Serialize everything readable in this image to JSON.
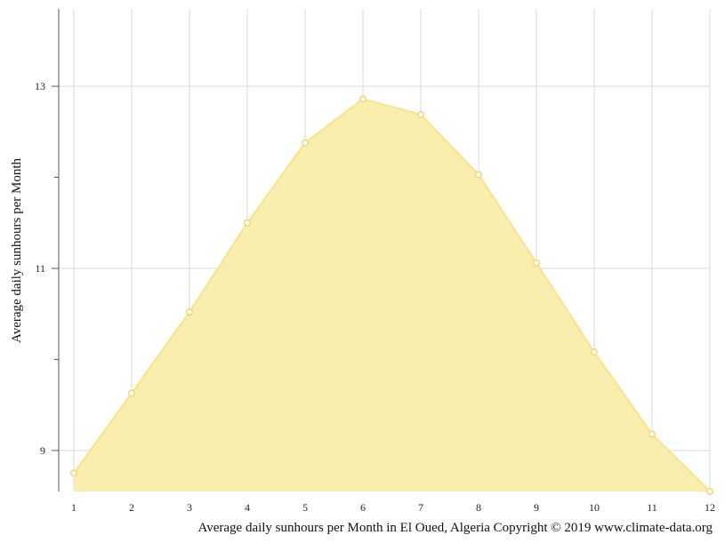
{
  "chart_data": {
    "type": "area",
    "x": [
      1,
      2,
      3,
      4,
      5,
      6,
      7,
      8,
      9,
      10,
      11,
      12
    ],
    "series": [
      {
        "values": [
          8.75,
          9.63,
          10.52,
          11.5,
          12.38,
          12.86,
          12.69,
          12.03,
          11.06,
          10.08,
          9.18,
          8.55
        ]
      }
    ],
    "ylabel": "Average daily sunhours per Month",
    "caption": "Average daily sunhours per Month in El Oued, Algeria Copyright © 2019 www.climate-data.org",
    "xlim": [
      1,
      12
    ],
    "ylim": [
      8.55,
      13.85
    ],
    "y_ticks_labeled": [
      "9",
      "11",
      "13"
    ],
    "y_ticks_minor": [
      10,
      12
    ],
    "x_ticks": [
      "1",
      "2",
      "3",
      "4",
      "5",
      "6",
      "7",
      "8",
      "9",
      "10",
      "11",
      "12"
    ],
    "grid": true,
    "colors": {
      "fill": "#f9eda9",
      "line": "#f7e38b",
      "marker": "#f2d468",
      "grid": "#d9d9d9",
      "axis": "#555555"
    }
  }
}
